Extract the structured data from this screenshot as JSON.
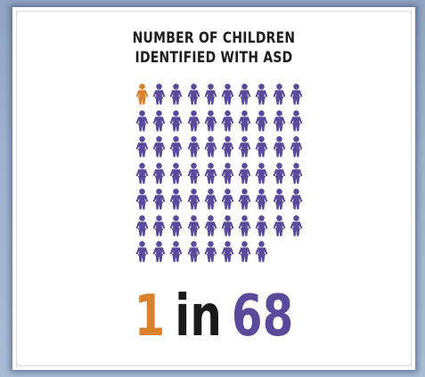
{
  "title_line1": "NUMBER OF CHILDREN",
  "title_line2": "IDENTIFIED WITH ASD",
  "figure": {
    "rows": 7,
    "per_row": 10,
    "total_icons": 68,
    "highlighted_icons": 1,
    "icon": "child-icon",
    "colors": {
      "highlight": "#d9822b",
      "default": "#5b4a9b"
    }
  },
  "stat": {
    "numerator": "1",
    "word": "in",
    "denominator": "68",
    "colors": {
      "numerator": "#d9822b",
      "word": "#1a1a1a",
      "denominator": "#5b4a9b"
    }
  }
}
